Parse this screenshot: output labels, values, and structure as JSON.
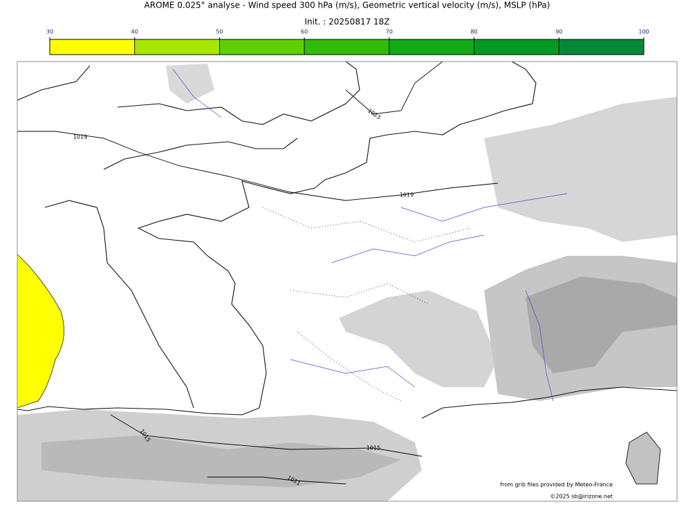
{
  "header": {
    "title": "AROME 0.025° analyse - Wind speed 300 hPa (m/s), Geometric vertical velocity (m/s), MSLP (hPa)",
    "init": "Init. : 20250817 18Z"
  },
  "colorbar": {
    "ticks": [
      30,
      40,
      50,
      60,
      70,
      80,
      90,
      100
    ],
    "colors": [
      "#ffff00",
      "#a8e600",
      "#5fcf00",
      "#32bb0a",
      "#13aa16",
      "#069a24",
      "#06873a",
      "#06774f"
    ]
  },
  "map": {
    "isobar_labels": [
      "1023",
      "1019",
      "1019",
      "1015",
      "1015",
      "1011"
    ]
  },
  "credits": {
    "source": "from grib files provided by Meteo-France",
    "copyright": "©2025 sb@irizone.net"
  }
}
